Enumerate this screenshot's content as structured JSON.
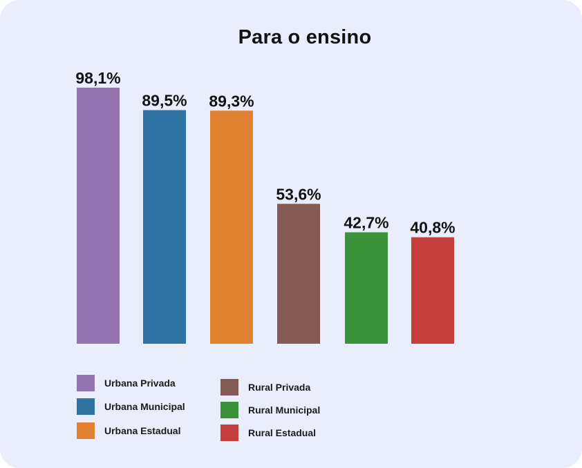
{
  "chart_data": {
    "type": "bar",
    "title": "Para o ensino",
    "categories": [
      "Urbana Privada",
      "Urbana Municipal",
      "Urbana Estadual",
      "Rural Privada",
      "Rural Municipal",
      "Rural Estadual"
    ],
    "values": [
      98.1,
      89.5,
      89.3,
      53.6,
      42.7,
      40.8
    ],
    "value_labels": [
      "98,1%",
      "89,5%",
      "89,3%",
      "53,6%",
      "42,7%",
      "40,8%"
    ],
    "colors": [
      "#9373b0",
      "#2e73a2",
      "#e0822f",
      "#835b53",
      "#3a9239",
      "#c33e3c"
    ],
    "ylim": [
      0,
      100
    ],
    "grid": false,
    "legend_position": "bottom"
  }
}
